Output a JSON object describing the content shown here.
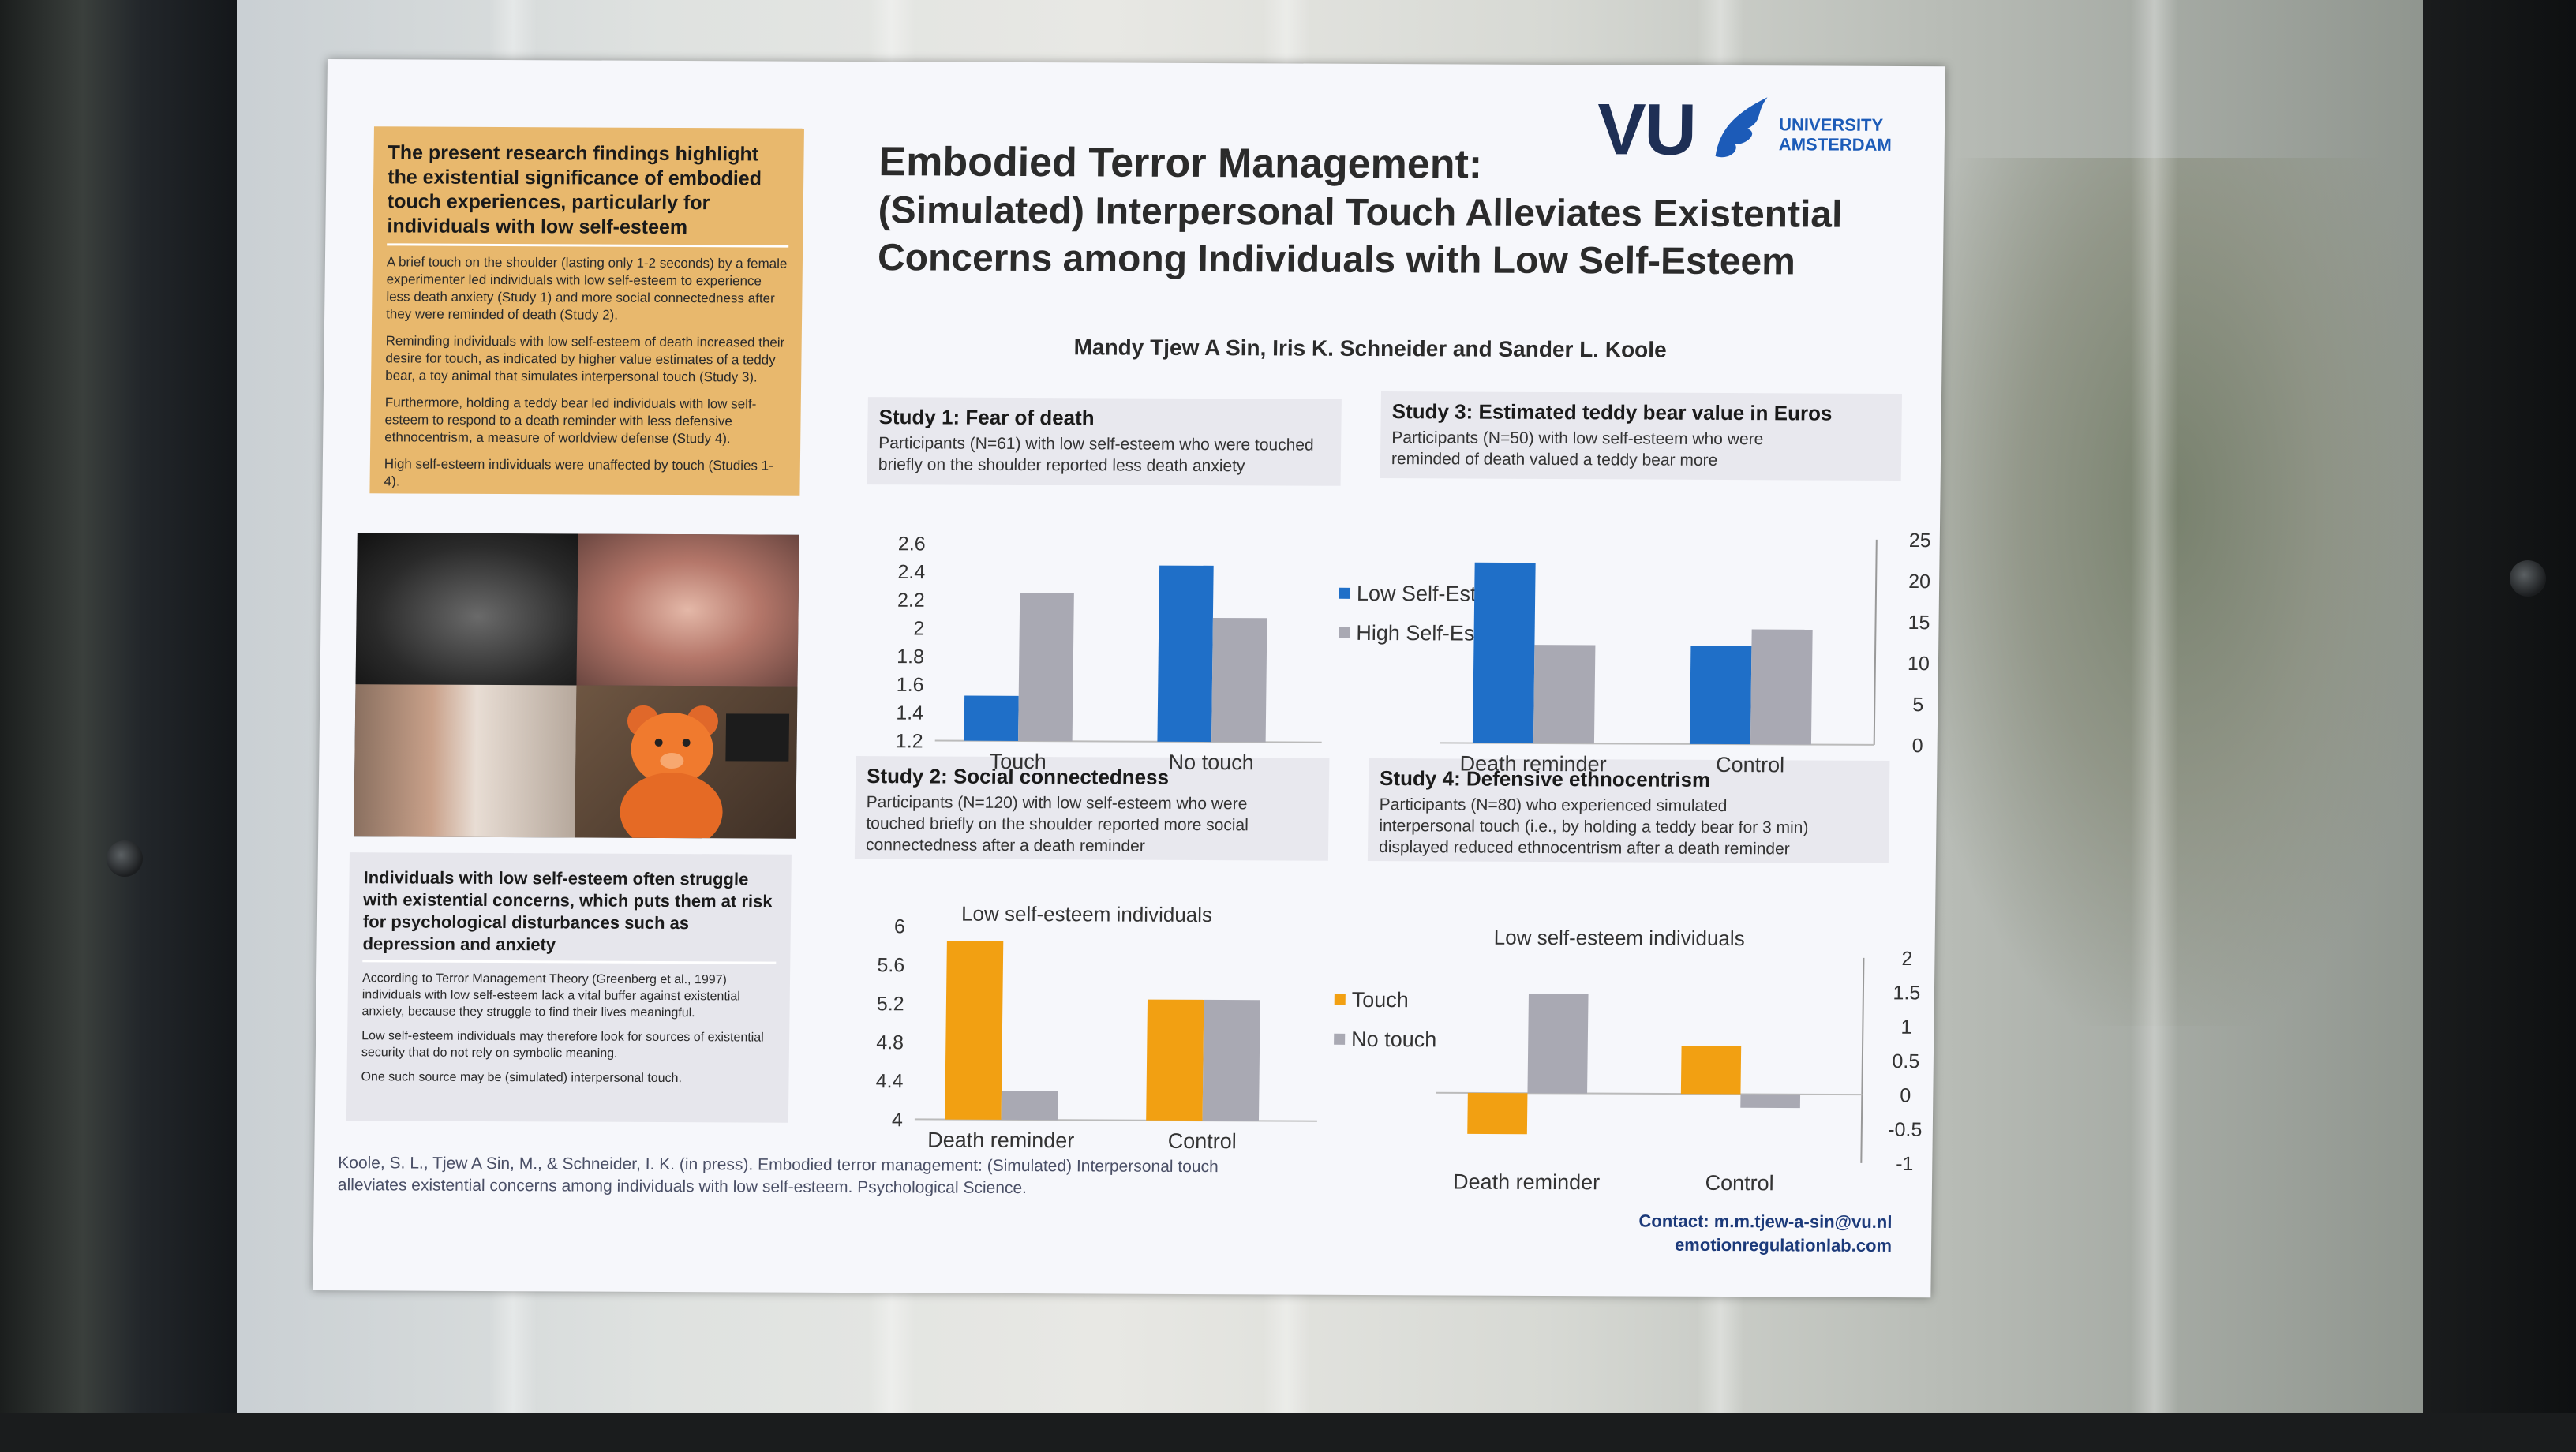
{
  "poster": {
    "highlight": {
      "title": "The present research findings highlight the existential significance of embodied touch experiences, particularly for individuals with low self-esteem",
      "paragraphs": [
        "A brief touch on the shoulder (lasting only 1-2 seconds) by a female experimenter led individuals with low self-esteem to experience less death anxiety (Study 1) and more social connectedness after they were reminded of death (Study 2).",
        "Reminding individuals with low self-esteem of death increased their desire for touch, as indicated by higher value estimates of a teddy bear, a toy animal that simulates interpersonal touch (Study 3).",
        "Furthermore, holding a teddy bear led individuals with low self-esteem to respond to a death reminder with less defensive ethnocentrism, a measure of worldview defense (Study 4).",
        "High self-esteem individuals were unaffected by touch (Studies 1-4)."
      ]
    },
    "lowbox": {
      "title": "Individuals with low self-esteem often struggle with existential concerns, which puts them at risk for psychological disturbances such as depression and anxiety",
      "paragraphs": [
        "According to Terror Management Theory (Greenberg et al., 1997) individuals with low self-esteem lack a vital buffer against existential anxiety, because they struggle to find their lives meaningful.",
        "Low self-esteem individuals may therefore look for sources of existential security that do not rely on symbolic meaning.",
        "One such source may be (simulated) interpersonal touch."
      ]
    },
    "logo": {
      "vu": "VU",
      "university": "UNIVERSITY",
      "amsterdam": "AMSTERDAM"
    },
    "title_line1": "Embodied Terror Management:",
    "title_line2": "(Simulated) Interpersonal Touch Alleviates Existential",
    "title_line3": "Concerns among Individuals with Low Self-Esteem",
    "authors": "Mandy Tjew A Sin, Iris K. Schneider and Sander L. Koole",
    "reference": "Koole, S. L., Tjew A Sin, M., & Schneider, I. K. (in press). Embodied terror management: (Simulated) Interpersonal touch alleviates existential concerns among individuals with low self-esteem. Psychological Science.",
    "contact_line1": "Contact: m.m.tjew-a-sin@vu.nl",
    "contact_line2": "emotionregulationlab.com"
  },
  "colors": {
    "low_self_esteem": "#1f6fc8",
    "high_self_esteem": "#a9a9b3",
    "touch": "#f2a012",
    "no_touch": "#a9a9b3",
    "highlight_box": "#e8b86d"
  },
  "study1": {
    "title": "Study 1:  Fear of death",
    "desc_line1": "Participants (N=61) with low self-esteem who were touched",
    "desc_line2": "briefly on the shoulder reported less death anxiety"
  },
  "study2": {
    "title": "Study 2:  Social connectedness",
    "desc_line1": "Participants (N=120) with low self-esteem who were",
    "desc_line2": "touched briefly on the shoulder reported more social",
    "desc_line3": "connectedness after a death reminder"
  },
  "study3": {
    "title": "Study 3:  Estimated teddy bear value in Euros",
    "desc_line1": "Participants (N=50) with low self-esteem who were",
    "desc_line2": "reminded of death valued a teddy bear more"
  },
  "study4": {
    "title": "Study 4:  Defensive ethnocentrism",
    "desc_line1": "Participants (N=80) who experienced simulated",
    "desc_line2": "interpersonal touch (i.e., by holding a teddy bear for 3 min)",
    "desc_line3": "displayed reduced ethnocentrism after a death reminder"
  },
  "chart_data": [
    {
      "type": "bar",
      "categories": [
        "Touch",
        "No touch"
      ],
      "series": [
        {
          "name": "Low Self-Esteem",
          "values": [
            1.52,
            2.45
          ]
        },
        {
          "name": "High Self-Esteem",
          "values": [
            2.25,
            2.08
          ]
        }
      ],
      "title": "",
      "xlabel": "",
      "ylabel": "",
      "ylim": [
        1.2,
        2.6
      ],
      "yticks": [
        "1.2",
        "1.4",
        "1.6",
        "1.8",
        "2",
        "2.2",
        "2.4",
        "2.6"
      ],
      "legend": "right"
    },
    {
      "type": "bar",
      "categories": [
        "Death reminder",
        "Control"
      ],
      "series": [
        {
          "name": "Low Self-Esteem",
          "values": [
            22,
            12
          ]
        },
        {
          "name": "High Self-Esteem",
          "values": [
            12,
            14
          ]
        }
      ],
      "title": "",
      "xlabel": "",
      "ylabel": "",
      "ylim": [
        0,
        25
      ],
      "yticks": [
        "0",
        "5",
        "10",
        "15",
        "20",
        "25"
      ],
      "legend": "left"
    },
    {
      "type": "bar",
      "categories": [
        "Death reminder",
        "Control"
      ],
      "series": [
        {
          "name": "Touch",
          "values": [
            5.85,
            5.25
          ]
        },
        {
          "name": "No touch",
          "values": [
            4.3,
            5.25
          ]
        }
      ],
      "title": "Low self-esteem individuals",
      "xlabel": "",
      "ylabel": "",
      "ylim": [
        4,
        6
      ],
      "yticks": [
        "4",
        "4.4",
        "4.8",
        "5.2",
        "5.6",
        "6"
      ],
      "legend": "right"
    },
    {
      "type": "bar",
      "categories": [
        "Death reminder",
        "Control"
      ],
      "series": [
        {
          "name": "Touch",
          "values": [
            -0.6,
            0.7
          ]
        },
        {
          "name": "No touch",
          "values": [
            1.45,
            -0.2
          ]
        }
      ],
      "title": "Low self-esteem individuals",
      "xlabel": "",
      "ylabel": "",
      "ylim": [
        -1,
        2
      ],
      "yticks": [
        "-1",
        "-0.5",
        "0",
        "0.5",
        "1",
        "1.5",
        "2"
      ],
      "legend": "left"
    }
  ]
}
